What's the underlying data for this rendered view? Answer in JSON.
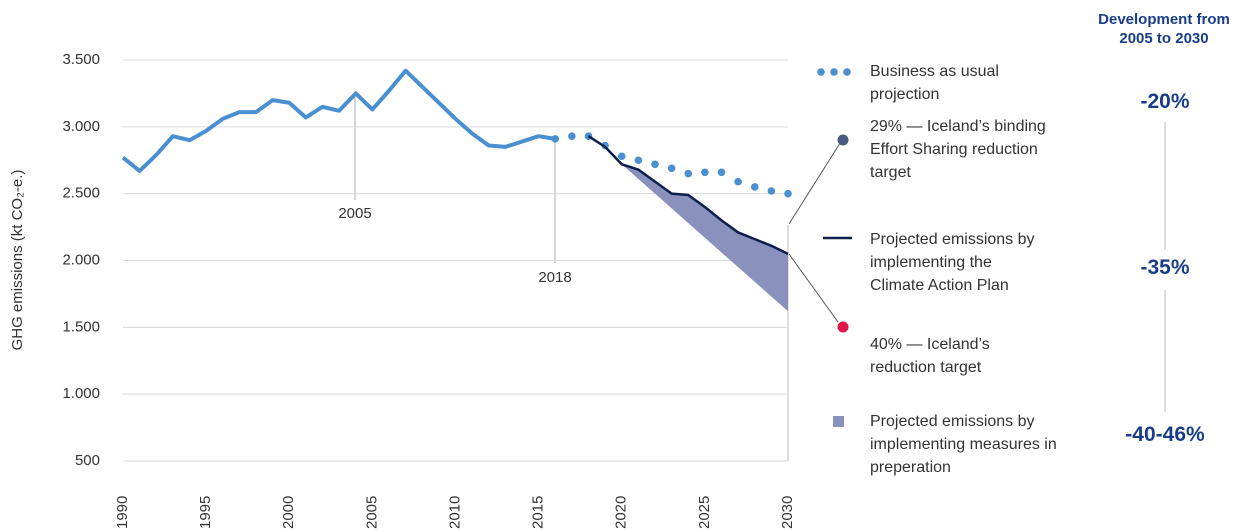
{
  "chart_data": {
    "type": "line",
    "ylabel": "GHG emissions (kt CO₂-e.)",
    "xlim": [
      1990,
      2030
    ],
    "xticks": [
      1990,
      1995,
      2000,
      2005,
      2010,
      2015,
      2020,
      2025,
      2030
    ],
    "ylim": [
      500,
      3500
    ],
    "yticks": [
      500,
      {
        "value": 1000,
        "label": "1.000"
      },
      {
        "value": 1500,
        "label": "1.500"
      },
      {
        "value": 2000,
        "label": "2.000"
      },
      {
        "value": 2500,
        "label": "2.500"
      },
      {
        "value": 3000,
        "label": "3.000"
      },
      {
        "value": 3500,
        "label": "3.500"
      }
    ],
    "grid": true,
    "annotations": [
      "2005",
      "2018"
    ],
    "series": [
      {
        "style": "line",
        "color": "#4a8fd0",
        "x": [
          1990,
          1991,
          1992,
          1993,
          1994,
          1995,
          1996,
          1997,
          1998,
          1999,
          2000,
          2001,
          2002,
          2003,
          2004,
          2005,
          2006,
          2007,
          2008,
          2009,
          2010,
          2011,
          2012,
          2013,
          2014,
          2015,
          2016
        ],
        "values": [
          2770,
          2670,
          2790,
          2930,
          2900,
          2970,
          3060,
          3110,
          3110,
          3200,
          3180,
          3070,
          3150,
          3120,
          3250,
          3130,
          3270,
          3420,
          3300,
          3180,
          3060,
          2950,
          2860,
          2850,
          2890,
          2930,
          2910
        ]
      },
      {
        "name": "Business as usual projection",
        "style": "dots",
        "color": "#4a8fd0",
        "x": [
          2016,
          2017,
          2018,
          2019,
          2020,
          2021,
          2022,
          2023,
          2024,
          2025,
          2026,
          2027,
          2028,
          2029,
          2030
        ],
        "values": [
          2910,
          2930,
          2930,
          2860,
          2780,
          2750,
          2720,
          2690,
          2650,
          2660,
          2660,
          2590,
          2550,
          2520,
          2500
        ]
      },
      {
        "name": "29% — Iceland’s binding Effort Sharing reduction target",
        "style": "target",
        "color": "#4a5a80"
      },
      {
        "name": "Projected emissions by implementing the Climate Action Plan",
        "style": "line",
        "color": "#0d1f4f",
        "x": [
          2018,
          2019,
          2020,
          2021,
          2022,
          2023,
          2024,
          2025,
          2026,
          2027,
          2028,
          2029,
          2030
        ],
        "values": [
          2930,
          2850,
          2720,
          2680,
          2590,
          2500,
          2490,
          2400,
          2300,
          2210,
          2160,
          2110,
          2050
        ]
      },
      {
        "name": "40% — Iceland’s reduction target",
        "style": "target",
        "color": "#e0174a"
      },
      {
        "name": "Projected emissions by implementing measures in preperation",
        "style": "area",
        "color": "#8a91bd",
        "x": [
          2020,
          2021,
          2022,
          2023,
          2024,
          2025,
          2026,
          2027,
          2028,
          2029,
          2030
        ],
        "values": [
          2720,
          2610,
          2500,
          2390,
          2280,
          2170,
          2060,
          1950,
          1840,
          1730,
          1620
        ]
      }
    ],
    "development": {
      "title": "Development from 2005 to 2030",
      "labels": [
        "-20%",
        "-35%",
        "-40-46%"
      ]
    }
  }
}
